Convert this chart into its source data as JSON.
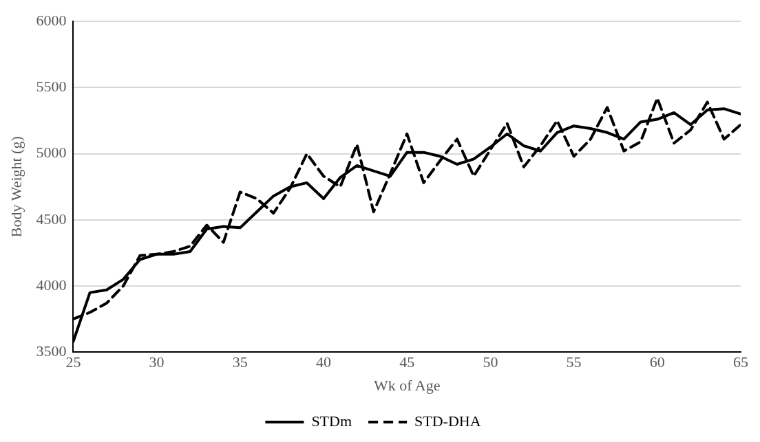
{
  "chart_data": {
    "type": "line",
    "xlabel": "Wk of Age",
    "ylabel": "Body Weight (g)",
    "x": [
      25,
      26,
      27,
      28,
      29,
      30,
      31,
      32,
      33,
      34,
      35,
      36,
      37,
      38,
      39,
      40,
      41,
      42,
      43,
      44,
      45,
      46,
      47,
      48,
      49,
      50,
      51,
      52,
      53,
      54,
      55,
      56,
      57,
      58,
      59,
      60,
      61,
      62,
      63,
      64,
      65
    ],
    "series": [
      {
        "name": "STDm",
        "color": "#000000",
        "line_style": "solid",
        "values": [
          3580,
          3950,
          3970,
          4050,
          4200,
          4240,
          4240,
          4260,
          4430,
          4450,
          4440,
          4560,
          4680,
          4750,
          4780,
          4660,
          4820,
          4910,
          4870,
          4830,
          5010,
          5010,
          4980,
          4920,
          4960,
          5050,
          5150,
          5060,
          5020,
          5160,
          5210,
          5190,
          5160,
          5110,
          5240,
          5260,
          5310,
          5220,
          5330,
          5340,
          5300
        ]
      },
      {
        "name": "STD-DHA",
        "color": "#000000",
        "line_style": "dashed",
        "values": [
          3750,
          3800,
          3870,
          4000,
          4230,
          4240,
          4260,
          4300,
          4460,
          4330,
          4710,
          4660,
          4550,
          4740,
          5000,
          4830,
          4750,
          5070,
          4560,
          4850,
          5150,
          4780,
          4950,
          5110,
          4830,
          5030,
          5230,
          4900,
          5060,
          5250,
          4980,
          5110,
          5350,
          5020,
          5090,
          5420,
          5080,
          5180,
          5390,
          5110,
          5220
        ]
      }
    ],
    "xlim": [
      25,
      65
    ],
    "xticks": [
      25,
      30,
      35,
      40,
      45,
      50,
      55,
      60,
      65
    ],
    "ylim": [
      3500,
      6000
    ],
    "yticks": [
      3500,
      4000,
      4500,
      5000,
      5500,
      6000
    ],
    "grid": "y",
    "legend": "bottom",
    "marker": "none"
  }
}
